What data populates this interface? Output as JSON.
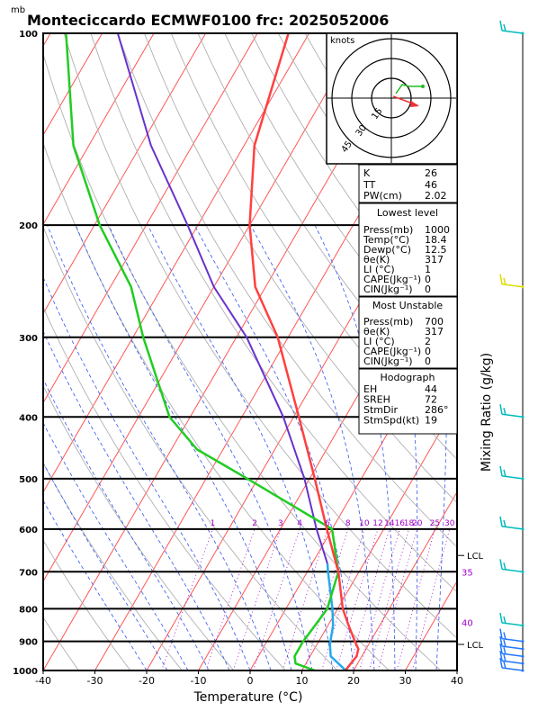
{
  "header": {
    "unit_mb": "mb",
    "title": "Monteciccardo ECMWF0100 frc: 2025052006"
  },
  "chart_data": {
    "type": "skew-t",
    "xlabel": "Temperature (°C)",
    "right_label": "Mixing Ratio (g/kg)",
    "pressure_levels": [
      100,
      200,
      300,
      400,
      500,
      600,
      700,
      800,
      900,
      1000
    ],
    "temperature_ticks": [
      -40,
      -30,
      -20,
      -10,
      0,
      10,
      20,
      30,
      40
    ],
    "xlim": [
      -40,
      40
    ],
    "plim": [
      1000,
      100
    ],
    "mixing_ratio_labels": [
      "1",
      "2",
      "3",
      "4",
      "6",
      "8",
      "10",
      "12",
      "14",
      "16",
      "18",
      "20",
      "25",
      "30"
    ],
    "temperature_profile": [
      {
        "p": 1000,
        "t": 18.4
      },
      {
        "p": 950,
        "t": 19.0
      },
      {
        "p": 925,
        "t": 18.5
      },
      {
        "p": 900,
        "t": 17.0
      },
      {
        "p": 850,
        "t": 14.0
      },
      {
        "p": 800,
        "t": 11.0
      },
      {
        "p": 700,
        "t": 6.0
      },
      {
        "p": 600,
        "t": -1.0
      },
      {
        "p": 500,
        "t": -9.0
      },
      {
        "p": 400,
        "t": -19.0
      },
      {
        "p": 300,
        "t": -32.0
      },
      {
        "p": 250,
        "t": -42.0
      },
      {
        "p": 200,
        "t": -50.0
      },
      {
        "p": 150,
        "t": -58.0
      },
      {
        "p": 100,
        "t": -64.0
      }
    ],
    "dewpoint_profile": [
      {
        "p": 1000,
        "t": 12.5
      },
      {
        "p": 975,
        "t": 8.0
      },
      {
        "p": 950,
        "t": 7.0
      },
      {
        "p": 900,
        "t": 7.0
      },
      {
        "p": 850,
        "t": 7.5
      },
      {
        "p": 800,
        "t": 8.0
      },
      {
        "p": 700,
        "t": 6.0
      },
      {
        "p": 600,
        "t": 0.0
      },
      {
        "p": 500,
        "t": -22.0
      },
      {
        "p": 450,
        "t": -35.0
      },
      {
        "p": 400,
        "t": -44.0
      },
      {
        "p": 300,
        "t": -58.0
      },
      {
        "p": 250,
        "t": -66.0
      },
      {
        "p": 200,
        "t": -79.0
      },
      {
        "p": 150,
        "t": -93.0
      },
      {
        "p": 100,
        "t": -107.0
      }
    ],
    "parcel_cyan": [
      {
        "p": 1000,
        "t": 18.5
      },
      {
        "p": 950,
        "t": 14.0
      },
      {
        "p": 910,
        "t": 12.5
      },
      {
        "p": 850,
        "t": 11.0
      },
      {
        "p": 800,
        "t": 9.0
      },
      {
        "p": 700,
        "t": 4.0
      },
      {
        "p": 680,
        "t": 3.0
      }
    ],
    "parcel_blue": [
      {
        "p": 680,
        "t": 3.0
      },
      {
        "p": 600,
        "t": -3.0
      },
      {
        "p": 500,
        "t": -11.0
      },
      {
        "p": 400,
        "t": -22.0
      },
      {
        "p": 300,
        "t": -38.0
      },
      {
        "p": 250,
        "t": -50.0
      },
      {
        "p": 200,
        "t": -62.0
      },
      {
        "p": 150,
        "t": -78.0
      },
      {
        "p": 100,
        "t": -97.0
      }
    ],
    "lcl_labels": [
      {
        "p": 910,
        "label": "LCL"
      },
      {
        "p": 660,
        "label": "LCL"
      }
    ],
    "theta_e_labels": [
      {
        "p": 700,
        "label": "35"
      },
      {
        "p": 840,
        "label": "40"
      }
    ],
    "hodograph": {
      "unit": "knots",
      "rings": [
        "15",
        "30",
        "45"
      ]
    },
    "indices": {
      "K": "26",
      "TT": "46",
      "PW(cm)": "2.02"
    },
    "lowest_level": {
      "title": "Lowest level",
      "rows": [
        [
          "Press(mb)",
          "1000"
        ],
        [
          "Temp(°C)",
          "18.4"
        ],
        [
          "Dewp(°C)",
          "12.5"
        ],
        [
          "θe(K)",
          "317"
        ],
        [
          "LI (°C)",
          "1"
        ],
        [
          "CAPE(Jkg⁻¹)",
          "0"
        ],
        [
          "CIN(Jkg⁻¹)",
          "0"
        ]
      ]
    },
    "most_unstable": {
      "title": "Most Unstable",
      "rows": [
        [
          "Press(mb)",
          "700"
        ],
        [
          "θe(K)",
          "317"
        ],
        [
          "LI (°C)",
          "2"
        ],
        [
          "CAPE(Jkg⁻¹)",
          "0"
        ],
        [
          "CIN(Jkg⁻¹)",
          "0"
        ]
      ]
    },
    "hodograph_box": {
      "title": "Hodograph",
      "rows": [
        [
          "EH",
          "44"
        ],
        [
          "SREH",
          "72"
        ],
        [
          "StmDir",
          "286°"
        ],
        [
          "StmSpd(kt)",
          "19"
        ]
      ]
    },
    "colors": {
      "temperature": "#ff4040",
      "dewpoint": "#22cc22",
      "parcel_lower": "#22aaee",
      "parcel_upper": "#6633cc",
      "isotherm": "#ff5555",
      "dry_adiabat": "#b0b0b0",
      "moist_adiabat": "#3355ee",
      "mixing_ratio": "#a000c8",
      "barb_cyan": "#00bbbb",
      "barb_yellow": "#dddd00",
      "barb_blue": "#2277ff"
    }
  }
}
